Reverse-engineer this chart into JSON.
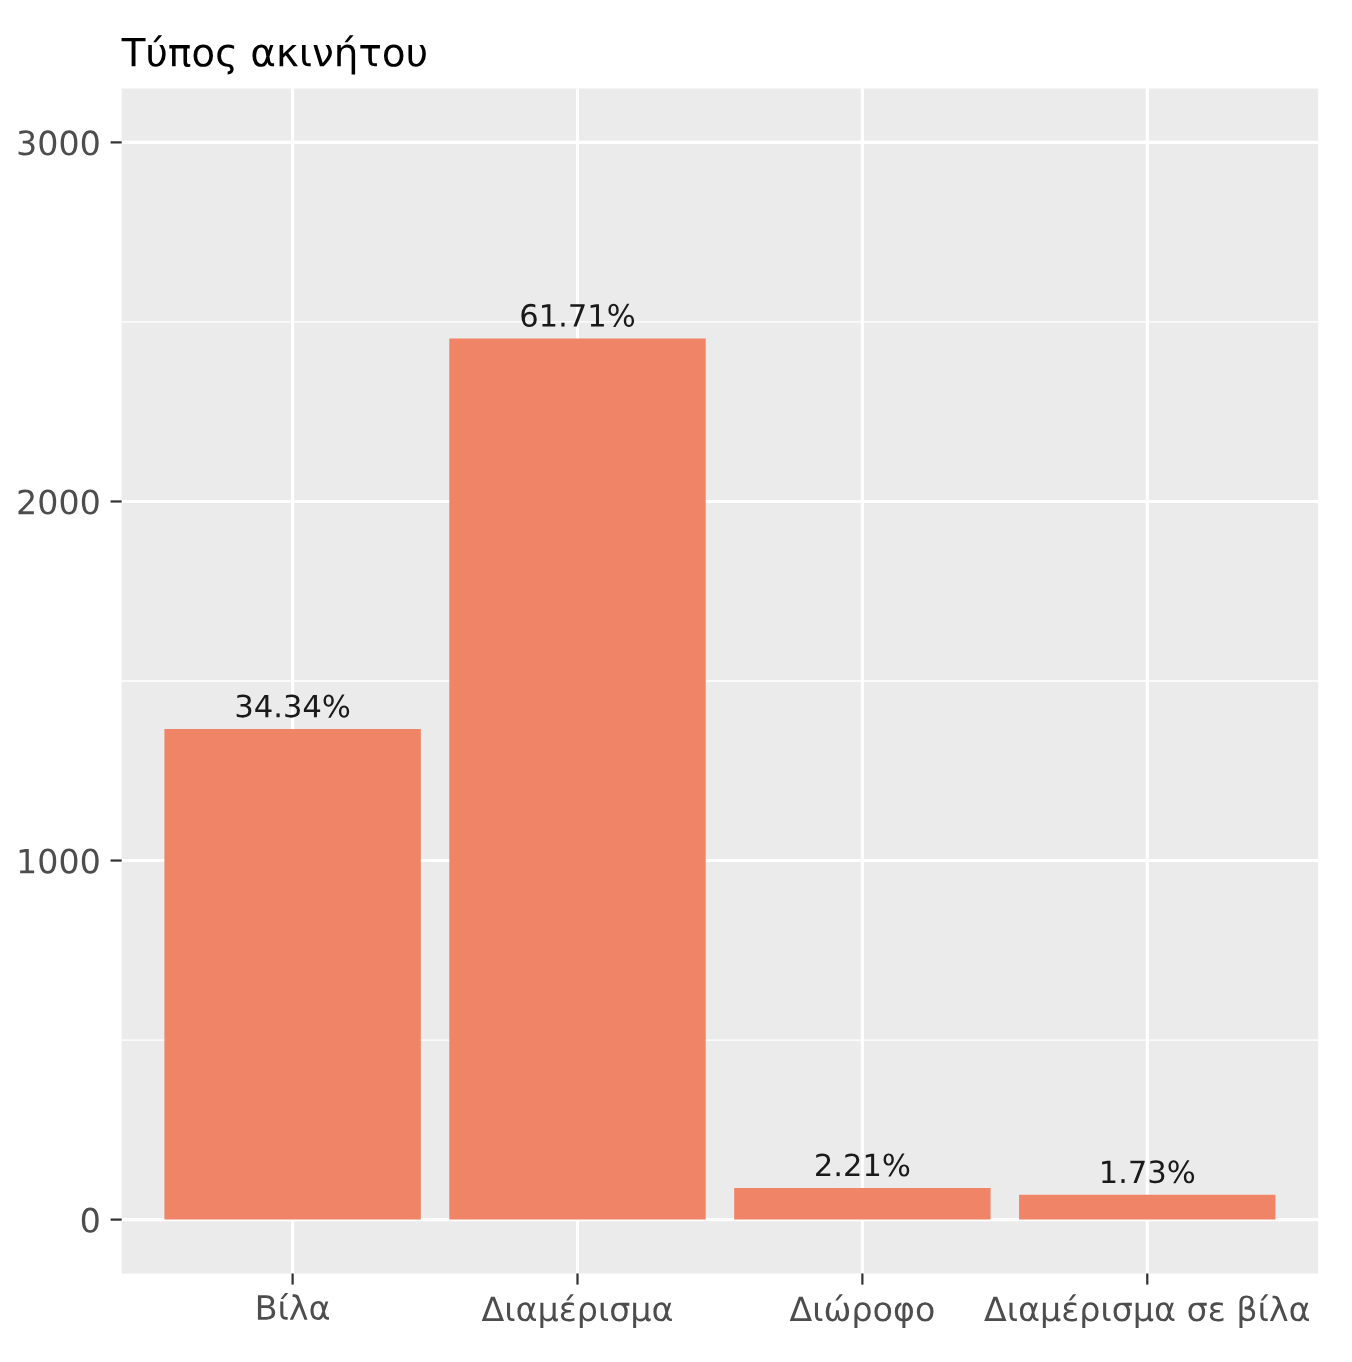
{
  "chart_data": {
    "type": "bar",
    "title": "Τύπος ακινήτου",
    "categories": [
      "Βίλα",
      "Διαμέρισμα",
      "Διώροφο",
      "Διαμέρισμα σε βίλα"
    ],
    "values": [
      1366,
      2454,
      88,
      69
    ],
    "annotations": [
      {
        "text": "34.34%",
        "x": "Βίλα",
        "y": 1366
      },
      {
        "text": "61.71%",
        "x": "Διαμέρισμα",
        "y": 2454
      },
      {
        "text": "2.21%",
        "x": "Διώροφο",
        "y": 88
      },
      {
        "text": "1.73%",
        "x": "Διαμέρισμα σε βίλα",
        "y": 69
      }
    ],
    "color": "#ef8466",
    "ylim": [
      -150,
      3150
    ],
    "yticks": [
      0,
      1000,
      2000,
      3000
    ],
    "grid": true
  }
}
